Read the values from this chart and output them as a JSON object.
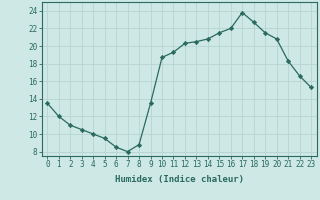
{
  "x": [
    0,
    1,
    2,
    3,
    4,
    5,
    6,
    7,
    8,
    9,
    10,
    11,
    12,
    13,
    14,
    15,
    16,
    17,
    18,
    19,
    20,
    21,
    22,
    23
  ],
  "y": [
    13.5,
    12.0,
    11.0,
    10.5,
    10.0,
    9.5,
    8.5,
    8.0,
    8.8,
    13.5,
    18.7,
    19.3,
    20.3,
    20.5,
    20.8,
    21.5,
    22.0,
    23.8,
    22.7,
    21.5,
    20.8,
    18.3,
    16.6,
    15.3
  ],
  "line_color": "#2a6b5e",
  "marker": "D",
  "marker_size": 2.2,
  "bg_color": "#cde8e5",
  "grid_color": "#b8d4d0",
  "xlabel": "Humidex (Indice chaleur)",
  "ylim": [
    7.5,
    25
  ],
  "xlim": [
    -0.5,
    23.5
  ],
  "yticks": [
    8,
    10,
    12,
    14,
    16,
    18,
    20,
    22,
    24
  ],
  "xticks": [
    0,
    1,
    2,
    3,
    4,
    5,
    6,
    7,
    8,
    9,
    10,
    11,
    12,
    13,
    14,
    15,
    16,
    17,
    18,
    19,
    20,
    21,
    22,
    23
  ],
  "font_color": "#2a6b5e",
  "axis_color": "#2a6b5e",
  "tick_fontsize": 5.5,
  "xlabel_fontsize": 6.5,
  "linewidth": 0.9
}
